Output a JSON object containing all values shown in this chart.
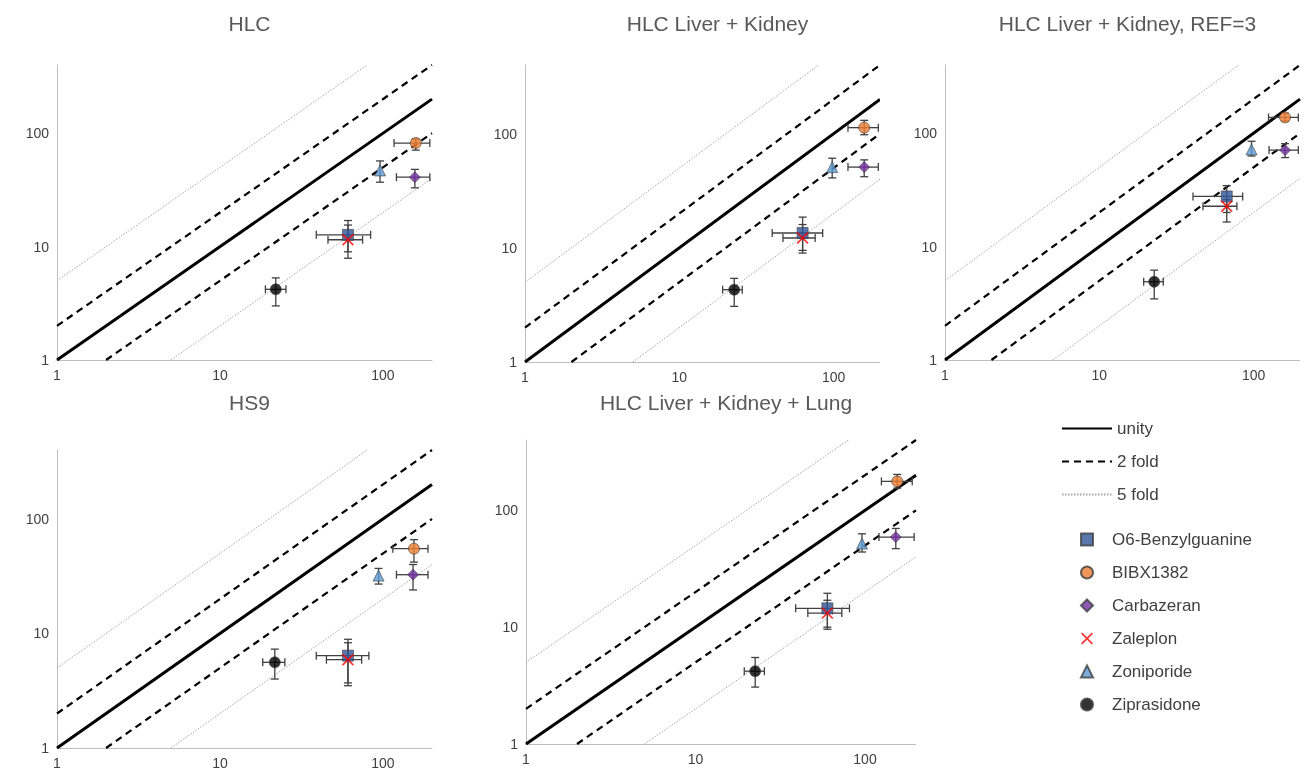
{
  "chart_data": [
    {
      "type": "scatter",
      "title": "HLC",
      "xlim": [
        1,
        200
      ],
      "ylim": [
        1,
        400
      ],
      "xticks": [
        1,
        10,
        100
      ],
      "yticks": [
        1,
        10,
        100
      ],
      "log": "xy",
      "grid": false,
      "series": [
        {
          "type": "line",
          "color": "#000000",
          "line_style": "solid",
          "marker": "none",
          "x": [
            1,
            200
          ],
          "values": [
            1,
            200
          ]
        },
        {
          "type": "line",
          "color": "#000000",
          "line_style": "dashed",
          "marker": "none",
          "x": [
            1,
            200
          ],
          "values": [
            2,
            400
          ]
        },
        {
          "type": "line",
          "color": "#000000",
          "line_style": "dashed",
          "marker": "none",
          "x": [
            2,
            200
          ],
          "values": [
            1,
            100
          ]
        },
        {
          "type": "line",
          "color": "#a6a6a6",
          "line_style": "dotted",
          "marker": "none",
          "x": [
            1,
            80
          ],
          "values": [
            5,
            400
          ]
        },
        {
          "type": "line",
          "color": "#a6a6a6",
          "line_style": "dotted",
          "marker": "none",
          "x": [
            5,
            200
          ],
          "values": [
            1,
            40
          ]
        },
        {
          "color": "#2f5597",
          "marker": "square",
          "x": [
            61
          ],
          "values": [
            12.7
          ],
          "errors": [
            [
              9.0,
              17
            ]
          ],
          "xerrors": [
            [
              39,
              84
            ]
          ]
        },
        {
          "color": "#ed7d31",
          "marker": "circle",
          "x": [
            159
          ],
          "values": [
            82
          ],
          "errors": [
            [
              71,
              89
            ]
          ],
          "xerrors": [
            [
              117,
              194
            ]
          ]
        },
        {
          "color": "#7030a0",
          "marker": "diamond",
          "x": [
            157
          ],
          "values": [
            41
          ],
          "errors": [
            [
              33,
              48
            ]
          ],
          "xerrors": [
            [
              121,
              194
            ]
          ]
        },
        {
          "color": "#ff0000",
          "marker": "cross",
          "x": [
            61
          ],
          "values": [
            11.5
          ],
          "errors": [
            [
              7.9,
              15.5
            ]
          ],
          "xerrors": [
            [
              46,
              75
            ]
          ]
        },
        {
          "color": "#5b9bd5",
          "marker": "triangle",
          "x": [
            96
          ],
          "values": [
            47
          ],
          "errors": [
            [
              37,
              57
            ]
          ],
          "xerrors": [
            null
          ]
        },
        {
          "color": "#000000",
          "marker": "circle",
          "x": [
            22
          ],
          "values": [
            4.2
          ],
          "errors": [
            [
              3.0,
              5.3
            ]
          ],
          "xerrors": [
            [
              19,
              25.4
            ]
          ]
        }
      ]
    },
    {
      "type": "scatter",
      "title": "HLC Liver + Kidney",
      "xlim": [
        1,
        200
      ],
      "ylim": [
        1,
        400
      ],
      "xticks": [
        1,
        10,
        100
      ],
      "yticks": [
        1,
        10,
        100
      ],
      "log": "xy",
      "grid": false,
      "series": [
        {
          "type": "line",
          "color": "#000000",
          "line_style": "solid",
          "marker": "none",
          "x": [
            1,
            200
          ],
          "values": [
            1,
            200
          ]
        },
        {
          "type": "line",
          "color": "#000000",
          "line_style": "dashed",
          "marker": "none",
          "x": [
            1,
            200
          ],
          "values": [
            2,
            400
          ]
        },
        {
          "type": "line",
          "color": "#000000",
          "line_style": "dashed",
          "marker": "none",
          "x": [
            2,
            200
          ],
          "values": [
            1,
            100
          ]
        },
        {
          "type": "line",
          "color": "#a6a6a6",
          "line_style": "dotted",
          "marker": "none",
          "x": [
            1,
            80
          ],
          "values": [
            5,
            400
          ]
        },
        {
          "type": "line",
          "color": "#a6a6a6",
          "line_style": "dotted",
          "marker": "none",
          "x": [
            5,
            200
          ],
          "values": [
            1,
            40
          ]
        },
        {
          "color": "#2f5597",
          "marker": "square",
          "x": [
            63
          ],
          "values": [
            13.5
          ],
          "errors": [
            [
              9.5,
              18.6
            ]
          ],
          "xerrors": [
            [
              40,
              85
            ]
          ]
        },
        {
          "color": "#ed7d31",
          "marker": "circle",
          "x": [
            158
          ],
          "values": [
            113
          ],
          "errors": [
            [
              98,
              131
            ]
          ],
          "xerrors": [
            [
              124,
              195
            ]
          ]
        },
        {
          "color": "#7030a0",
          "marker": "diamond",
          "x": [
            158
          ],
          "values": [
            51
          ],
          "errors": [
            [
              42,
              59
            ]
          ],
          "xerrors": [
            [
              124,
              195
            ]
          ]
        },
        {
          "color": "#ff0000",
          "marker": "cross",
          "x": [
            63
          ],
          "values": [
            12.2
          ],
          "errors": [
            [
              9.0,
              16
            ]
          ],
          "xerrors": [
            [
              47,
              76
            ]
          ]
        },
        {
          "color": "#5b9bd5",
          "marker": "triangle",
          "x": [
            98
          ],
          "values": [
            51
          ],
          "errors": [
            [
              41,
              61
            ]
          ],
          "xerrors": [
            null
          ]
        },
        {
          "color": "#000000",
          "marker": "circle",
          "x": [
            22.7
          ],
          "values": [
            4.3
          ],
          "errors": [
            [
              3.07,
              5.4
            ]
          ],
          "xerrors": [
            [
              19.1,
              25.6
            ]
          ]
        }
      ]
    },
    {
      "type": "scatter",
      "title": "HLC Liver + Kidney, REF=3",
      "xlim": [
        1,
        200
      ],
      "ylim": [
        1,
        400
      ],
      "xticks": [
        1,
        10,
        100
      ],
      "yticks": [
        1,
        10,
        100
      ],
      "log": "xy",
      "grid": false,
      "series": [
        {
          "type": "line",
          "color": "#000000",
          "line_style": "solid",
          "marker": "none",
          "x": [
            1,
            200
          ],
          "values": [
            1,
            200
          ]
        },
        {
          "type": "line",
          "color": "#000000",
          "line_style": "dashed",
          "marker": "none",
          "x": [
            1,
            200
          ],
          "values": [
            2,
            400
          ]
        },
        {
          "type": "line",
          "color": "#000000",
          "line_style": "dashed",
          "marker": "none",
          "x": [
            2,
            200
          ],
          "values": [
            1,
            100
          ]
        },
        {
          "type": "line",
          "color": "#a6a6a6",
          "line_style": "dotted",
          "marker": "none",
          "x": [
            1,
            80
          ],
          "values": [
            5,
            400
          ]
        },
        {
          "type": "line",
          "color": "#a6a6a6",
          "line_style": "dotted",
          "marker": "none",
          "x": [
            5,
            200
          ],
          "values": [
            1,
            40
          ]
        },
        {
          "color": "#2f5597",
          "marker": "square",
          "x": [
            67
          ],
          "values": [
            27.7
          ],
          "errors": [
            [
              20,
              34.5
            ]
          ],
          "xerrors": [
            [
              40.5,
              85
            ]
          ]
        },
        {
          "color": "#ed7d31",
          "marker": "circle",
          "x": [
            160
          ],
          "values": [
            138
          ],
          "errors": [
            [
              128,
              150
            ]
          ],
          "xerrors": [
            [
              125,
              195
            ]
          ]
        },
        {
          "color": "#7030a0",
          "marker": "diamond",
          "x": [
            160
          ],
          "values": [
            71
          ],
          "errors": [
            [
              61,
              81
            ]
          ],
          "xerrors": [
            [
              126,
              195
            ]
          ]
        },
        {
          "color": "#ff0000",
          "marker": "cross",
          "x": [
            67
          ],
          "values": [
            22.7
          ],
          "errors": [
            [
              16.5,
              26
            ]
          ],
          "xerrors": [
            [
              47,
              78
            ]
          ]
        },
        {
          "color": "#5b9bd5",
          "marker": "triangle",
          "x": [
            97
          ],
          "values": [
            72
          ],
          "errors": [
            [
              63,
              85
            ]
          ],
          "xerrors": [
            null
          ]
        },
        {
          "color": "#000000",
          "marker": "circle",
          "x": [
            22.7
          ],
          "values": [
            4.9
          ],
          "errors": [
            [
              3.46,
              6.2
            ]
          ],
          "xerrors": [
            [
              19.4,
              26
            ]
          ]
        }
      ]
    },
    {
      "type": "scatter",
      "title": "HS9",
      "xlim": [
        1,
        200
      ],
      "ylim": [
        1,
        400
      ],
      "xticks": [
        1,
        10,
        100
      ],
      "yticks": [
        1,
        10,
        100
      ],
      "log": "xy",
      "grid": false,
      "series": [
        {
          "type": "line",
          "color": "#000000",
          "line_style": "solid",
          "marker": "none",
          "x": [
            1,
            200
          ],
          "values": [
            1,
            200
          ]
        },
        {
          "type": "line",
          "color": "#000000",
          "line_style": "dashed",
          "marker": "none",
          "x": [
            1,
            200
          ],
          "values": [
            2,
            400
          ]
        },
        {
          "type": "line",
          "color": "#000000",
          "line_style": "dashed",
          "marker": "none",
          "x": [
            2,
            200
          ],
          "values": [
            1,
            100
          ]
        },
        {
          "type": "line",
          "color": "#a6a6a6",
          "line_style": "dotted",
          "marker": "none",
          "x": [
            1,
            80
          ],
          "values": [
            5,
            400
          ]
        },
        {
          "type": "line",
          "color": "#a6a6a6",
          "line_style": "dotted",
          "marker": "none",
          "x": [
            5,
            200
          ],
          "values": [
            1,
            40
          ]
        },
        {
          "color": "#2f5597",
          "marker": "square",
          "x": [
            61
          ],
          "values": [
            6.4
          ],
          "errors": [
            [
              3.5,
              8.9
            ]
          ],
          "xerrors": [
            [
              39,
              82
            ]
          ]
        },
        {
          "color": "#ed7d31",
          "marker": "circle",
          "x": [
            155
          ],
          "values": [
            55
          ],
          "errors": [
            [
              42,
              66
            ]
          ],
          "xerrors": [
            [
              115,
              189
            ]
          ]
        },
        {
          "color": "#7030a0",
          "marker": "diamond",
          "x": [
            153
          ],
          "values": [
            32.6
          ],
          "errors": [
            [
              24,
              40
            ]
          ],
          "xerrors": [
            [
              121,
              189
            ]
          ]
        },
        {
          "color": "#ff0000",
          "marker": "cross",
          "x": [
            61
          ],
          "values": [
            5.9
          ],
          "errors": [
            [
              3.7,
              8.3
            ]
          ],
          "xerrors": [
            [
              45,
              74
            ]
          ]
        },
        {
          "color": "#5b9bd5",
          "marker": "triangle",
          "x": [
            94
          ],
          "values": [
            32
          ],
          "errors": [
            [
              27,
              37
            ]
          ],
          "xerrors": [
            null
          ]
        },
        {
          "color": "#000000",
          "marker": "circle",
          "x": [
            21.7
          ],
          "values": [
            5.6
          ],
          "errors": [
            [
              4.0,
              7.3
            ]
          ],
          "xerrors": [
            [
              18.3,
              25
            ]
          ]
        }
      ]
    },
    {
      "type": "scatter",
      "title": "HLC Liver + Kidney + Lung",
      "xlim": [
        1,
        200
      ],
      "ylim": [
        1,
        400
      ],
      "xticks": [
        1,
        10,
        100
      ],
      "yticks": [
        1,
        10,
        100
      ],
      "log": "xy",
      "grid": false,
      "legend": "right",
      "series": [
        {
          "name": "unity",
          "type": "line",
          "color": "#000000",
          "line_style": "solid",
          "marker": "none",
          "x": [
            1,
            200
          ],
          "values": [
            1,
            200
          ]
        },
        {
          "name": "2 fold",
          "type": "line",
          "color": "#000000",
          "line_style": "dashed",
          "marker": "none",
          "x": [
            1,
            200
          ],
          "values": [
            2,
            400
          ]
        },
        {
          "type": "line",
          "color": "#000000",
          "line_style": "dashed",
          "marker": "none",
          "x": [
            2,
            200
          ],
          "values": [
            1,
            100
          ]
        },
        {
          "name": "5 fold",
          "type": "line",
          "color": "#a6a6a6",
          "line_style": "dotted",
          "marker": "none",
          "x": [
            1,
            80
          ],
          "values": [
            5,
            400
          ]
        },
        {
          "type": "line",
          "color": "#a6a6a6",
          "line_style": "dotted",
          "marker": "none",
          "x": [
            5,
            200
          ],
          "values": [
            1,
            40
          ]
        },
        {
          "name": "O6-Benzylguanine",
          "color": "#2f5597",
          "marker": "square",
          "x": [
            60
          ],
          "values": [
            14.5
          ],
          "errors": [
            [
              10,
              19.5
            ]
          ],
          "xerrors": [
            [
              39,
              81
            ]
          ]
        },
        {
          "name": "BIBX1382",
          "color": "#ed7d31",
          "marker": "circle",
          "x": [
            155
          ],
          "values": [
            177
          ],
          "errors": [
            [
              155,
              203
            ]
          ],
          "xerrors": [
            [
              125,
              190
            ]
          ]
        },
        {
          "name": "Carbazeran",
          "color": "#7030a0",
          "marker": "diamond",
          "x": [
            152
          ],
          "values": [
            59
          ],
          "errors": [
            [
              47,
              70
            ]
          ],
          "xerrors": [
            [
              121,
              195
            ]
          ]
        },
        {
          "name": "Zaleplon",
          "color": "#ff0000",
          "marker": "cross",
          "x": [
            60
          ],
          "values": [
            13.2
          ],
          "errors": [
            [
              9.6,
              17
            ]
          ],
          "xerrors": [
            [
              46,
              73
            ]
          ]
        },
        {
          "name": "Zoniporide",
          "color": "#5b9bd5",
          "marker": "triangle",
          "x": [
            96
          ],
          "values": [
            52
          ],
          "errors": [
            [
              44,
              63
            ]
          ],
          "xerrors": [
            null
          ]
        },
        {
          "name": "Ziprasidone",
          "color": "#000000",
          "marker": "circle",
          "x": [
            22.5
          ],
          "values": [
            4.2
          ],
          "errors": [
            [
              3.07,
              5.5
            ]
          ],
          "xerrors": [
            [
              19.4,
              25.5
            ]
          ]
        }
      ]
    }
  ]
}
